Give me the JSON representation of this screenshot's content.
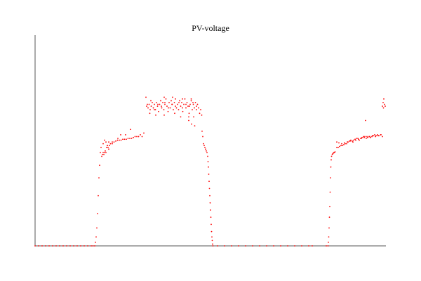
{
  "chart_data": {
    "type": "scatter",
    "title": "PV-voltage",
    "xlabel": "",
    "ylabel": "",
    "xlim": [
      0,
      1000
    ],
    "ylim": [
      0,
      100
    ],
    "grid": false,
    "legend": "none",
    "marker_color": "#ff0000",
    "axis_color": "#555555",
    "series": [
      {
        "values": [
          [
            0,
            0
          ],
          [
            10,
            0
          ],
          [
            20,
            0
          ],
          [
            30,
            0
          ],
          [
            40,
            0
          ],
          [
            50,
            0
          ],
          [
            60,
            0
          ],
          [
            70,
            0
          ],
          [
            80,
            0
          ],
          [
            90,
            0
          ],
          [
            100,
            0
          ],
          [
            110,
            0
          ],
          [
            120,
            0
          ],
          [
            130,
            0
          ],
          [
            140,
            0
          ],
          [
            150,
            0
          ],
          [
            160,
            0
          ],
          [
            165,
            0
          ],
          [
            170,
            0
          ],
          [
            172,
            2
          ],
          [
            174,
            5
          ],
          [
            176,
            10
          ],
          [
            178,
            18
          ],
          [
            180,
            28
          ],
          [
            182,
            38
          ],
          [
            184,
            45
          ],
          [
            186,
            52
          ],
          [
            188,
            55
          ],
          [
            190,
            50
          ],
          [
            192,
            51
          ],
          [
            194,
            52
          ],
          [
            196,
            51
          ],
          [
            198,
            52
          ],
          [
            200,
            53
          ],
          [
            202,
            52
          ],
          [
            204,
            55
          ],
          [
            206,
            56
          ],
          [
            208,
            55
          ],
          [
            210,
            54
          ],
          [
            212,
            56
          ],
          [
            194,
            57
          ],
          [
            198,
            59
          ],
          [
            202,
            58
          ],
          [
            206,
            56
          ],
          [
            210,
            58
          ],
          [
            215,
            57
          ],
          [
            220,
            58
          ],
          [
            225,
            58
          ],
          [
            230,
            58.5
          ],
          [
            235,
            59
          ],
          [
            240,
            59
          ],
          [
            245,
            59
          ],
          [
            250,
            59.5
          ],
          [
            255,
            59.5
          ],
          [
            260,
            59.5
          ],
          [
            265,
            60
          ],
          [
            270,
            60
          ],
          [
            275,
            60
          ],
          [
            280,
            60.5
          ],
          [
            285,
            61
          ],
          [
            290,
            61
          ],
          [
            295,
            61
          ],
          [
            300,
            62
          ],
          [
            305,
            61
          ],
          [
            310,
            63
          ],
          [
            272,
            65
          ],
          [
            258,
            62
          ],
          [
            244,
            62
          ],
          [
            220,
            57
          ],
          [
            236,
            60
          ],
          [
            318,
            78
          ],
          [
            322,
            77
          ],
          [
            325,
            79
          ],
          [
            328,
            76
          ],
          [
            331,
            78
          ],
          [
            334,
            80
          ],
          [
            337,
            77
          ],
          [
            340,
            79
          ],
          [
            343,
            76
          ],
          [
            346,
            80
          ],
          [
            349,
            78
          ],
          [
            352,
            75
          ],
          [
            355,
            79
          ],
          [
            358,
            81
          ],
          [
            361,
            77
          ],
          [
            364,
            80
          ],
          [
            367,
            76
          ],
          [
            370,
            79
          ],
          [
            373,
            82
          ],
          [
            376,
            78
          ],
          [
            379,
            75
          ],
          [
            382,
            80
          ],
          [
            385,
            77
          ],
          [
            388,
            81
          ],
          [
            391,
            79
          ],
          [
            394,
            76
          ],
          [
            397,
            80
          ],
          [
            400,
            82
          ],
          [
            403,
            77
          ],
          [
            406,
            79
          ],
          [
            409,
            76
          ],
          [
            412,
            81
          ],
          [
            415,
            78
          ],
          [
            418,
            80
          ],
          [
            421,
            75
          ],
          [
            424,
            79
          ],
          [
            427,
            82
          ],
          [
            430,
            77
          ],
          [
            433,
            80
          ],
          [
            436,
            78
          ],
          [
            439,
            74
          ],
          [
            442,
            79
          ],
          [
            445,
            81
          ],
          [
            448,
            76
          ],
          [
            451,
            79
          ],
          [
            454,
            77
          ],
          [
            457,
            80
          ],
          [
            460,
            78
          ],
          [
            463,
            79
          ],
          [
            466,
            77
          ],
          [
            469,
            74
          ],
          [
            472,
            76
          ],
          [
            475,
            73
          ],
          [
            320,
            79
          ],
          [
            330,
            81
          ],
          [
            340,
            76
          ],
          [
            350,
            79
          ],
          [
            360,
            78
          ],
          [
            370,
            80
          ],
          [
            380,
            77
          ],
          [
            390,
            79
          ],
          [
            400,
            78
          ],
          [
            410,
            80
          ],
          [
            420,
            77
          ],
          [
            430,
            79
          ],
          [
            440,
            78
          ],
          [
            450,
            80
          ],
          [
            460,
            76
          ],
          [
            316,
            83
          ],
          [
            327,
            74
          ],
          [
            344,
            73
          ],
          [
            368,
            73
          ],
          [
            398,
            74
          ],
          [
            415,
            72
          ],
          [
            438,
            72
          ],
          [
            452,
            72
          ],
          [
            368,
            83
          ],
          [
            392,
            83
          ],
          [
            420,
            82
          ],
          [
            445,
            82
          ],
          [
            438,
            70
          ],
          [
            446,
            68
          ],
          [
            455,
            67
          ],
          [
            476,
            64
          ],
          [
            478,
            61
          ],
          [
            480,
            57
          ],
          [
            482,
            56
          ],
          [
            484,
            55
          ],
          [
            486,
            54
          ],
          [
            488,
            53
          ],
          [
            490,
            52
          ],
          [
            492,
            50
          ],
          [
            493,
            47
          ],
          [
            494,
            44
          ],
          [
            495,
            40
          ],
          [
            496,
            36
          ],
          [
            497,
            32
          ],
          [
            498,
            28
          ],
          [
            499,
            24
          ],
          [
            500,
            20
          ],
          [
            501,
            16
          ],
          [
            502,
            12
          ],
          [
            503,
            8
          ],
          [
            504,
            5
          ],
          [
            505,
            3
          ],
          [
            506,
            1
          ],
          [
            507,
            0
          ],
          [
            520,
            0
          ],
          [
            540,
            0
          ],
          [
            560,
            0
          ],
          [
            580,
            0
          ],
          [
            600,
            0
          ],
          [
            620,
            0
          ],
          [
            640,
            0
          ],
          [
            660,
            0
          ],
          [
            680,
            0
          ],
          [
            700,
            0
          ],
          [
            720,
            0
          ],
          [
            740,
            0
          ],
          [
            760,
            0
          ],
          [
            780,
            0
          ],
          [
            790,
            0
          ],
          [
            830,
            0
          ],
          [
            835,
            0
          ],
          [
            836,
            2
          ],
          [
            837,
            5
          ],
          [
            838,
            10
          ],
          [
            839,
            16
          ],
          [
            840,
            22
          ],
          [
            841,
            30
          ],
          [
            842,
            38
          ],
          [
            843,
            44
          ],
          [
            844,
            48
          ],
          [
            845,
            50
          ],
          [
            847,
            51
          ],
          [
            849,
            51.5
          ],
          [
            851,
            52
          ],
          [
            853,
            52
          ],
          [
            855,
            52.5
          ],
          [
            860,
            55
          ],
          [
            864,
            55
          ],
          [
            868,
            55.5
          ],
          [
            872,
            56
          ],
          [
            876,
            56
          ],
          [
            880,
            56.5
          ],
          [
            884,
            57
          ],
          [
            888,
            57
          ],
          [
            892,
            58
          ],
          [
            896,
            58.5
          ],
          [
            900,
            59
          ],
          [
            904,
            58.5
          ],
          [
            908,
            59
          ],
          [
            912,
            59.5
          ],
          [
            916,
            60
          ],
          [
            920,
            60
          ],
          [
            924,
            59
          ],
          [
            928,
            60
          ],
          [
            932,
            60.5
          ],
          [
            936,
            61
          ],
          [
            940,
            61
          ],
          [
            944,
            60
          ],
          [
            948,
            60.5
          ],
          [
            952,
            61
          ],
          [
            956,
            60.5
          ],
          [
            960,
            61
          ],
          [
            964,
            61.5
          ],
          [
            968,
            62
          ],
          [
            972,
            61.5
          ],
          [
            976,
            62
          ],
          [
            980,
            61.5
          ],
          [
            985,
            62
          ],
          [
            990,
            61
          ],
          [
            860,
            58
          ],
          [
            866,
            57.5
          ],
          [
            874,
            57
          ],
          [
            882,
            57.5
          ],
          [
            890,
            58
          ],
          [
            898,
            58.5
          ],
          [
            906,
            58
          ],
          [
            914,
            59
          ],
          [
            922,
            59.5
          ],
          [
            930,
            60
          ],
          [
            938,
            60.5
          ],
          [
            946,
            61
          ],
          [
            954,
            61
          ],
          [
            962,
            61.5
          ],
          [
            970,
            61
          ],
          [
            978,
            61.5
          ],
          [
            986,
            62
          ],
          [
            942,
            70
          ],
          [
            990,
            78
          ],
          [
            992,
            80
          ],
          [
            994,
            82
          ],
          [
            996,
            79
          ],
          [
            998,
            78
          ],
          [
            993,
            77
          ]
        ]
      }
    ]
  }
}
